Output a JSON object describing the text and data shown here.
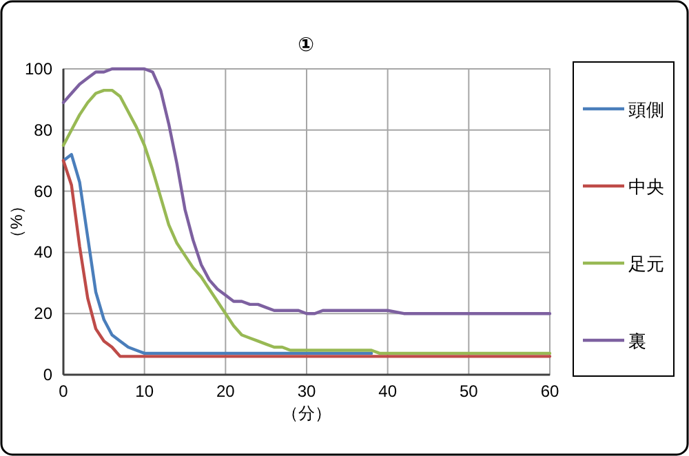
{
  "chart_data": {
    "type": "line",
    "title": "①",
    "xlabel": "（分）",
    "ylabel": "（%）",
    "xlim": [
      0,
      60
    ],
    "xticks": [
      0,
      10,
      20,
      30,
      40,
      50,
      60
    ],
    "ylim": [
      0,
      100
    ],
    "yticks": [
      0,
      20,
      40,
      60,
      80,
      100
    ],
    "grid": true,
    "legend": "right",
    "marker": "none",
    "series": [
      {
        "name": "頭側",
        "color": "#4a7ebb",
        "x": [
          0,
          1,
          2,
          3,
          4,
          5,
          6,
          7,
          8,
          9,
          10,
          38
        ],
        "values": [
          70,
          72,
          63,
          45,
          27,
          18,
          13,
          11,
          9,
          8,
          7,
          7
        ]
      },
      {
        "name": "中央",
        "color": "#be4b48",
        "x": [
          0,
          1,
          2,
          3,
          4,
          5,
          6,
          7,
          60
        ],
        "values": [
          70,
          62,
          42,
          25,
          15,
          11,
          9,
          6,
          6
        ]
      },
      {
        "name": "足元",
        "color": "#98b954",
        "x": [
          0,
          1,
          2,
          3,
          4,
          5,
          6,
          7,
          8,
          9,
          10,
          11,
          12,
          13,
          14,
          15,
          16,
          17,
          18,
          19,
          20,
          21,
          22,
          23,
          24,
          25,
          26,
          27,
          28,
          38,
          39,
          60
        ],
        "values": [
          75,
          80,
          85,
          89,
          92,
          93,
          93,
          91,
          86,
          81,
          75,
          67,
          58,
          49,
          43,
          39,
          35,
          32,
          28,
          24,
          20,
          16,
          13,
          12,
          11,
          10,
          9,
          9,
          8,
          8,
          7,
          7
        ]
      },
      {
        "name": "裏",
        "color": "#7d60a0",
        "x": [
          0,
          1,
          2,
          3,
          4,
          5,
          6,
          10,
          11,
          12,
          13,
          14,
          15,
          16,
          17,
          18,
          19,
          20,
          21,
          22,
          23,
          24,
          25,
          26,
          29,
          30,
          31,
          32,
          40,
          42,
          60
        ],
        "values": [
          89,
          92,
          95,
          97,
          99,
          99,
          100,
          100,
          99,
          93,
          82,
          69,
          54,
          44,
          36,
          31,
          28,
          26,
          24,
          24,
          23,
          23,
          22,
          21,
          21,
          20,
          20,
          21,
          21,
          20,
          20
        ]
      }
    ]
  }
}
